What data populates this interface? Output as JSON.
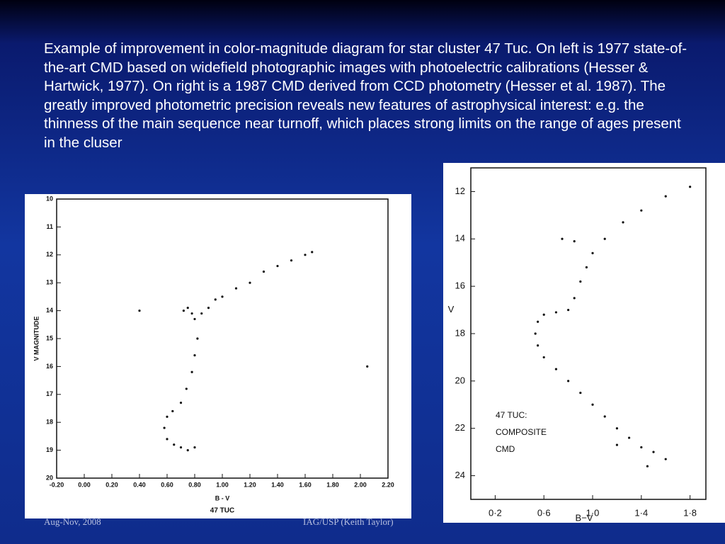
{
  "slide": {
    "text": "Example of improvement in color-magnitude diagram for star cluster 47 Tuc. On left is 1977 state-of-the-art CMD based on widefield photographic images with photoelectric calibrations (Hesser & Hartwick, 1977). On right is a 1987 CMD derived from CCD photometry (Hesser et al. 1987). The greatly improved photometric precision reveals new features of astrophysical interest: e.g. the thinness of the main sequence near turnoff, which places strong limits on the range of ages present in the cluser",
    "footer_left": "Aug-Nov, 2008",
    "footer_right": "IAG/USP (Keith Taylor)"
  },
  "chart_data": [
    {
      "type": "scatter",
      "title": "47 TUC",
      "xlabel": "B - V",
      "ylabel": "V  MAGNITUDE",
      "color": "#111111",
      "xlim": [
        -0.2,
        2.2
      ],
      "ylim": [
        20,
        10
      ],
      "xticks": [
        {
          "value": -0.2,
          "label": "-0.20"
        },
        {
          "value": 0,
          "label": "0.00"
        },
        {
          "value": 0.2,
          "label": "0.20"
        },
        {
          "value": 0.4,
          "label": "0.40"
        },
        {
          "value": 0.6,
          "label": "0.60"
        },
        {
          "value": 0.8,
          "label": "0.80"
        },
        {
          "value": 1,
          "label": "1.00"
        },
        {
          "value": 1.2,
          "label": "1.20"
        },
        {
          "value": 1.4,
          "label": "1.40"
        },
        {
          "value": 1.6,
          "label": "1.60"
        },
        {
          "value": 1.8,
          "label": "1.80"
        },
        {
          "value": 2,
          "label": "2.00"
        },
        {
          "value": 2.2,
          "label": "2.20"
        }
      ],
      "yticks": [
        10,
        11,
        12,
        13,
        14,
        15,
        16,
        17,
        18,
        19,
        20
      ],
      "x": [
        0.72,
        0.75,
        0.78,
        0.8,
        0.85,
        0.9,
        0.95,
        1.0,
        1.1,
        1.2,
        1.3,
        1.4,
        1.5,
        1.6,
        1.65,
        0.82,
        0.8,
        0.78,
        0.74,
        0.7,
        0.64,
        0.6,
        0.58,
        0.6,
        0.65,
        0.7,
        0.75,
        0.8,
        0.4,
        2.05
      ],
      "values": [
        14.0,
        13.9,
        14.1,
        14.3,
        14.1,
        13.9,
        13.6,
        13.5,
        13.2,
        13.0,
        12.6,
        12.4,
        12.2,
        12.0,
        11.9,
        15.0,
        15.6,
        16.2,
        16.8,
        17.3,
        17.6,
        17.8,
        18.2,
        18.6,
        18.8,
        18.9,
        19.0,
        18.9,
        14.0,
        16.0
      ]
    },
    {
      "type": "scatter",
      "xlabel": "B−V",
      "ylabel": "V",
      "color": "#111111",
      "annotation": [
        "47 TUC:",
        "COMPOSITE",
        "CMD"
      ],
      "xlim": [
        0,
        1.93
      ],
      "ylim": [
        25,
        11
      ],
      "xticks": [
        {
          "value": 0.2,
          "label": "0·2"
        },
        {
          "value": 0.6,
          "label": "0·6"
        },
        {
          "value": 1.0,
          "label": "1·0"
        },
        {
          "value": 1.4,
          "label": "1·4"
        },
        {
          "value": 1.8,
          "label": "1·8"
        }
      ],
      "yticks": [
        12,
        14,
        16,
        18,
        20,
        22,
        24
      ],
      "x": [
        1.8,
        1.6,
        1.4,
        1.25,
        1.1,
        1.0,
        0.95,
        0.9,
        0.85,
        0.8,
        0.7,
        0.6,
        0.55,
        0.53,
        0.55,
        0.6,
        0.7,
        0.8,
        0.9,
        1.0,
        1.1,
        1.2,
        1.3,
        1.4,
        1.5,
        1.6,
        1.2,
        0.85,
        0.75,
        1.45
      ],
      "values": [
        11.8,
        12.2,
        12.8,
        13.3,
        14.0,
        14.6,
        15.2,
        15.8,
        16.5,
        17.0,
        17.1,
        17.2,
        17.5,
        18.0,
        18.5,
        19.0,
        19.5,
        20.0,
        20.5,
        21.0,
        21.5,
        22.0,
        22.4,
        22.8,
        23.0,
        23.3,
        22.7,
        14.1,
        14.0,
        23.6
      ]
    }
  ]
}
